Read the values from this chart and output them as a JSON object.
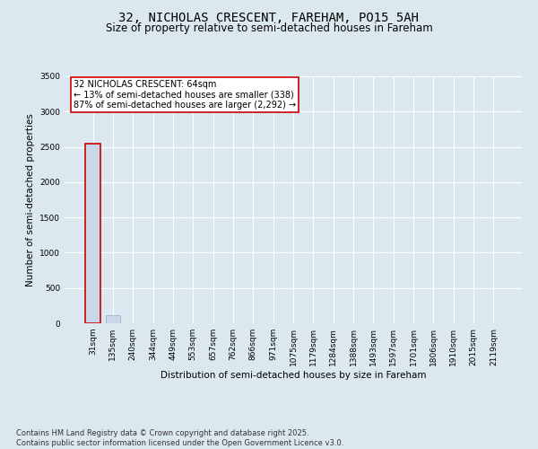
{
  "title": "32, NICHOLAS CRESCENT, FAREHAM, PO15 5AH",
  "subtitle": "Size of property relative to semi-detached houses in Fareham",
  "xlabel": "Distribution of semi-detached houses by size in Fareham",
  "ylabel": "Number of semi-detached properties",
  "categories": [
    "31sqm",
    "135sqm",
    "240sqm",
    "344sqm",
    "449sqm",
    "553sqm",
    "657sqm",
    "762sqm",
    "866sqm",
    "971sqm",
    "1075sqm",
    "1179sqm",
    "1284sqm",
    "1388sqm",
    "1493sqm",
    "1597sqm",
    "1701sqm",
    "1806sqm",
    "1910sqm",
    "2015sqm",
    "2119sqm"
  ],
  "values": [
    2550,
    120,
    0,
    0,
    0,
    0,
    0,
    0,
    0,
    0,
    0,
    0,
    0,
    0,
    0,
    0,
    0,
    0,
    0,
    0,
    0
  ],
  "highlight_index": 0,
  "highlight_color": "#c8d8e8",
  "highlight_border_color": "#cc0000",
  "normal_color": "#c8d8e8",
  "normal_border_color": "#8ab0c8",
  "ylim": [
    0,
    3500
  ],
  "yticks": [
    0,
    500,
    1000,
    1500,
    2000,
    2500,
    3000,
    3500
  ],
  "annotation_text": "32 NICHOLAS CRESCENT: 64sqm\n← 13% of semi-detached houses are smaller (338)\n87% of semi-detached houses are larger (2,292) →",
  "annotation_border_color": "#cc0000",
  "annotation_bg_color": "#ffffff",
  "footer_text": "Contains HM Land Registry data © Crown copyright and database right 2025.\nContains public sector information licensed under the Open Government Licence v3.0.",
  "background_color": "#dce8f0",
  "plot_bg_color": "#dce8f0",
  "grid_color": "#ffffff",
  "title_fontsize": 10,
  "subtitle_fontsize": 8.5,
  "axis_label_fontsize": 7.5,
  "tick_fontsize": 6.5,
  "annotation_fontsize": 7,
  "footer_fontsize": 6
}
